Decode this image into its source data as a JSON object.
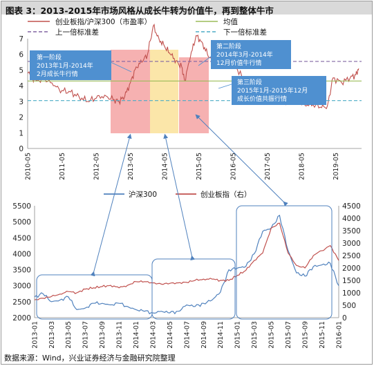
{
  "figure": {
    "title": "图表 3：2013-2015年市场风格从成长牛转为价值牛，再到整体牛市",
    "source": "数据来源：Wind，兴业证券经济与金融研究院整理"
  },
  "legend1": [
    {
      "label": "创业板指/沪深300（市盈率）",
      "color": "#c0504d",
      "style": "solid"
    },
    {
      "label": "均值",
      "color": "#9bbb59",
      "style": "solid"
    },
    {
      "label": "上一倍标准差",
      "color": "#8064a2",
      "style": "dash"
    },
    {
      "label": "下一倍标准差",
      "color": "#4bacc6",
      "style": "dash"
    }
  ],
  "legend2": [
    {
      "label": "沪深300",
      "color": "#4f81bd"
    },
    {
      "label": "创业板指（右）",
      "color": "#c0504d"
    }
  ],
  "annotations": [
    "第一阶段\n2013年1月-2014年\n2月成长牛行情",
    "第二阶段\n2014年3月-2014年\n12月价值牛行情",
    "第三阶段\n2015年1月-2015年12月\n成长价值共振行情"
  ],
  "chart_data": [
    {
      "type": "line",
      "xlabel": "",
      "ylabel": "",
      "ylim": [
        0,
        7
      ],
      "yticks": [
        0,
        1,
        2,
        3,
        4,
        5,
        6,
        7
      ],
      "xlim": [
        "2010-05",
        "2020-02"
      ],
      "xticks": [
        "2010-05",
        "2011-05",
        "2012-05",
        "2013-05",
        "2014-05",
        "2015-05",
        "2016-05",
        "2017-05",
        "2018-05",
        "2019-05"
      ],
      "series": [
        {
          "name": "创业板指/沪深300（市盈率）",
          "x": [
            "2010-05",
            "2010-08",
            "2010-11",
            "2011-02",
            "2011-05",
            "2011-08",
            "2011-11",
            "2012-02",
            "2012-05",
            "2012-08",
            "2012-11",
            "2013-01",
            "2013-03",
            "2013-05",
            "2013-07",
            "2013-09",
            "2013-11",
            "2014-01",
            "2014-03",
            "2014-05",
            "2014-07",
            "2014-09",
            "2014-11",
            "2014-12",
            "2015-02",
            "2015-04",
            "2015-06",
            "2015-08",
            "2015-10",
            "2015-12",
            "2016-03",
            "2016-06",
            "2016-09",
            "2016-12",
            "2017-03",
            "2017-06",
            "2017-09",
            "2017-12",
            "2018-03",
            "2018-06",
            "2018-09",
            "2018-12",
            "2019-02",
            "2019-04",
            "2019-07",
            "2019-10",
            "2019-12",
            "2020-01"
          ],
          "values": [
            4.8,
            4.3,
            4.5,
            4.0,
            3.7,
            3.6,
            3.3,
            3.0,
            3.2,
            3.4,
            3.1,
            3.0,
            3.3,
            4.2,
            5.2,
            5.5,
            6.0,
            7.8,
            7.0,
            6.5,
            6.0,
            5.6,
            5.2,
            4.3,
            5.8,
            7.2,
            6.8,
            6.0,
            5.5,
            6.1,
            5.4,
            5.2,
            4.3,
            4.0,
            3.6,
            3.2,
            3.1,
            2.9,
            3.1,
            2.8,
            2.8,
            2.6,
            2.7,
            4.5,
            4.2,
            4.5,
            4.7,
            5.1
          ]
        },
        {
          "name": "均值",
          "x": [
            "2010-05",
            "2020-02"
          ],
          "values": [
            4.3,
            4.3
          ]
        },
        {
          "name": "上一倍标准差",
          "x": [
            "2010-05",
            "2020-02"
          ],
          "values": [
            5.55,
            5.55
          ]
        },
        {
          "name": "下一倍标准差",
          "x": [
            "2010-05",
            "2020-02"
          ],
          "values": [
            3.05,
            3.05
          ]
        }
      ]
    },
    {
      "type": "line",
      "xlabel": "",
      "ylabel": "",
      "ylim": [
        2000,
        5500
      ],
      "ylim_right": [
        0,
        4500
      ],
      "yticks": [
        2000,
        2500,
        3000,
        3500,
        4000,
        4500,
        5000,
        5500
      ],
      "yticks_right": [
        0,
        500,
        1000,
        1500,
        2000,
        2500,
        3000,
        3500,
        4000,
        4500
      ],
      "xticks": [
        "2013-01",
        "2013-03",
        "2013-05",
        "2013-07",
        "2013-09",
        "2013-11",
        "2014-01",
        "2014-03",
        "2014-05",
        "2014-07",
        "2014-09",
        "2014-11",
        "2015-01",
        "2015-03",
        "2015-05",
        "2015-07",
        "2015-09",
        "2015-11",
        "2016-01"
      ],
      "series": [
        {
          "name": "沪深300",
          "axis": "left",
          "x": [
            "2013-01",
            "2013-02",
            "2013-03",
            "2013-04",
            "2013-05",
            "2013-06",
            "2013-07",
            "2013-08",
            "2013-09",
            "2013-10",
            "2013-11",
            "2013-12",
            "2014-01",
            "2014-02",
            "2014-03",
            "2014-04",
            "2014-05",
            "2014-06",
            "2014-07",
            "2014-08",
            "2014-09",
            "2014-10",
            "2014-11",
            "2014-12",
            "2015-01",
            "2015-02",
            "2015-03",
            "2015-04",
            "2015-05",
            "2015-06",
            "2015-07",
            "2015-08",
            "2015-09",
            "2015-10",
            "2015-11",
            "2015-12",
            "2016-01"
          ],
          "values": [
            2650,
            2750,
            2500,
            2550,
            2650,
            2250,
            2300,
            2450,
            2450,
            2400,
            2450,
            2350,
            2250,
            2200,
            2150,
            2200,
            2150,
            2200,
            2400,
            2350,
            2450,
            2550,
            2800,
            3500,
            3550,
            3600,
            4000,
            4700,
            4800,
            5200,
            4100,
            3400,
            3300,
            3600,
            3650,
            3700,
            3000
          ]
        },
        {
          "name": "创业板指（右）",
          "axis": "right",
          "x": [
            "2013-01",
            "2013-02",
            "2013-03",
            "2013-04",
            "2013-05",
            "2013-06",
            "2013-07",
            "2013-08",
            "2013-09",
            "2013-10",
            "2013-11",
            "2013-12",
            "2014-01",
            "2014-02",
            "2014-03",
            "2014-04",
            "2014-05",
            "2014-06",
            "2014-07",
            "2014-08",
            "2014-09",
            "2014-10",
            "2014-11",
            "2014-12",
            "2015-01",
            "2015-02",
            "2015-03",
            "2015-04",
            "2015-05",
            "2015-06",
            "2015-07",
            "2015-08",
            "2015-09",
            "2015-10",
            "2015-12",
            "2016-01"
          ],
          "values": [
            720,
            780,
            850,
            950,
            1050,
            1000,
            1150,
            1200,
            1250,
            1300,
            1200,
            1300,
            1450,
            1450,
            1400,
            1350,
            1380,
            1400,
            1420,
            1500,
            1550,
            1550,
            1500,
            1500,
            1700,
            1900,
            2300,
            2600,
            3600,
            3800,
            2600,
            2100,
            2000,
            2500,
            2900,
            2300
          ]
        }
      ]
    }
  ]
}
